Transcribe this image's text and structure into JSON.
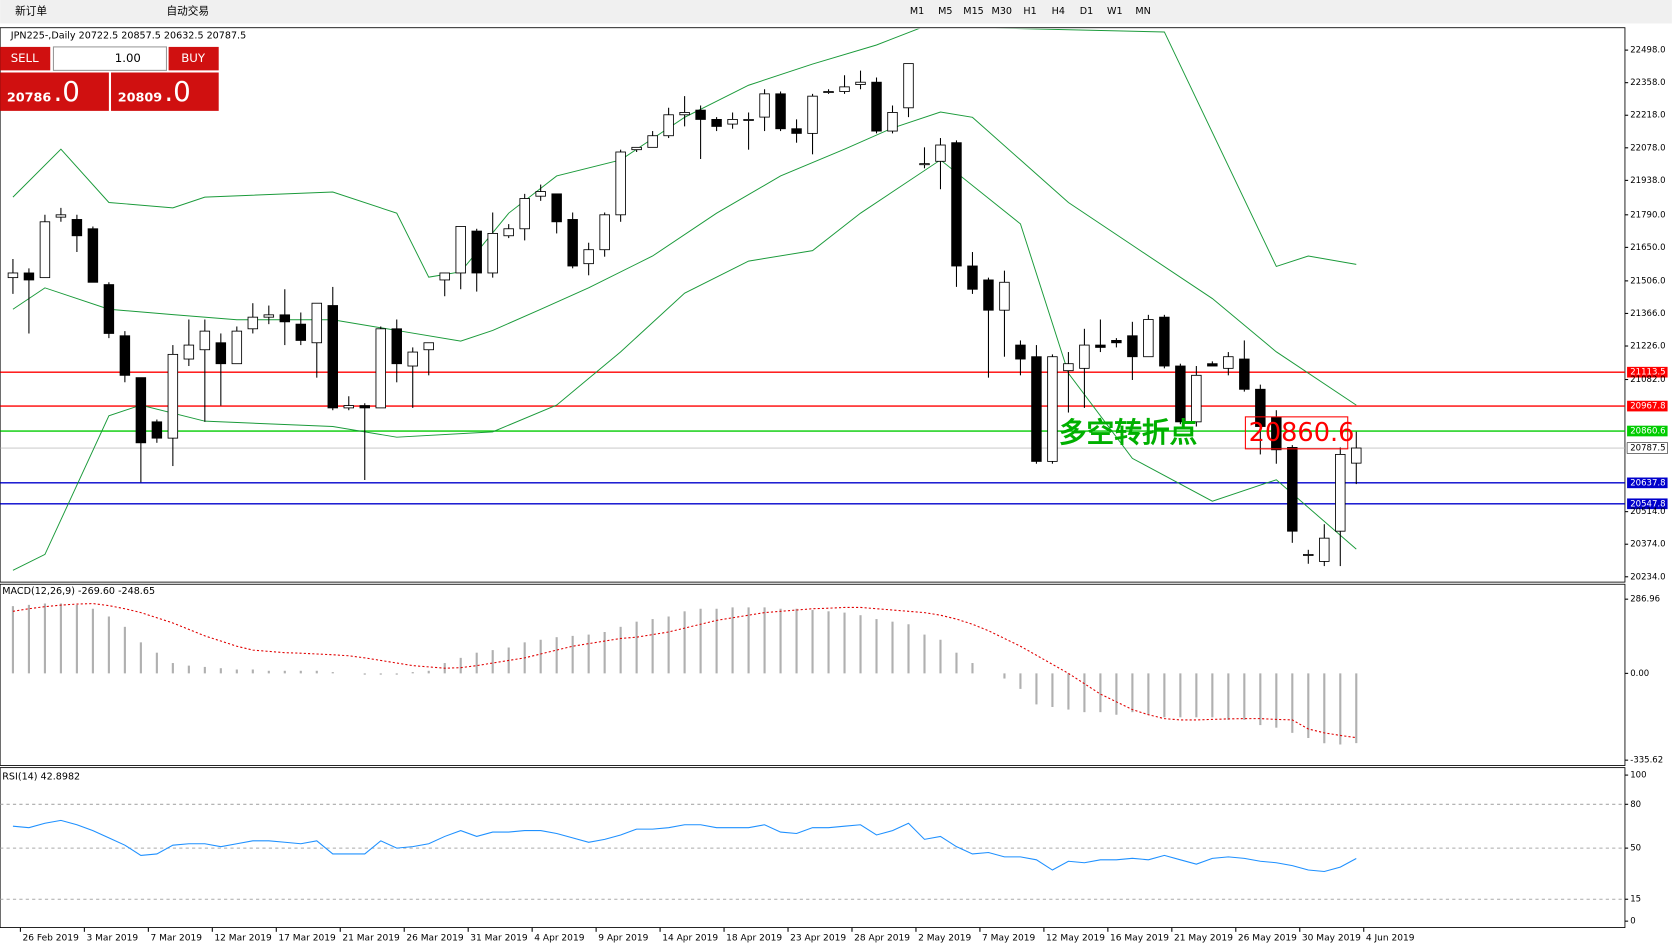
{
  "toolbar": {
    "new_order": "新订单",
    "auto_trading": "自动交易",
    "timeframes": [
      "M1",
      "M5",
      "M15",
      "M30",
      "H1",
      "H4",
      "D1",
      "W1",
      "MN"
    ]
  },
  "trade_panel": {
    "sell": "SELL",
    "lot": "1.00",
    "buy": "BUY",
    "sell_big": "20786",
    "sell_small": ".0",
    "buy_big": "20809",
    "buy_small": ".0"
  },
  "chart_data": {
    "type": "candlestick",
    "title": "JPN225-,Daily  20722.5 20857.5 20632.5 20787.5",
    "x": [
      "26 Feb 2019",
      "3 Mar 2019",
      "7 Mar 2019",
      "12 Mar 2019",
      "17 Mar 2019",
      "21 Mar 2019",
      "26 Mar 2019",
      "31 Mar 2019",
      "4 Apr 2019",
      "9 Apr 2019",
      "14 Apr 2019",
      "18 Apr 2019",
      "23 Apr 2019",
      "28 Apr 2019",
      "2 May 2019",
      "7 May 2019",
      "12 May 2019",
      "16 May 2019",
      "21 May 2019",
      "26 May 2019",
      "30 May 2019",
      "4 Jun 2019"
    ],
    "candles": [
      [
        21520,
        21600,
        21450,
        21540
      ],
      [
        21540,
        21560,
        21280,
        21510
      ],
      [
        21520,
        21790,
        21520,
        21760
      ],
      [
        21780,
        21820,
        21760,
        21790
      ],
      [
        21770,
        21790,
        21630,
        21700
      ],
      [
        21730,
        21740,
        21500,
        21500
      ],
      [
        21490,
        21500,
        21260,
        21280
      ],
      [
        21270,
        21290,
        21070,
        21100
      ],
      [
        21090,
        21090,
        20640,
        20810
      ],
      [
        20900,
        20910,
        20810,
        20830
      ],
      [
        20830,
        21230,
        20710,
        21190
      ],
      [
        21170,
        21340,
        21140,
        21230
      ],
      [
        21210,
        21340,
        20900,
        21290
      ],
      [
        21240,
        21280,
        20970,
        21150
      ],
      [
        21150,
        21310,
        21150,
        21290
      ],
      [
        21300,
        21410,
        21280,
        21350
      ],
      [
        21350,
        21400,
        21320,
        21360
      ],
      [
        21360,
        21470,
        21230,
        21330
      ],
      [
        21320,
        21370,
        21230,
        21250
      ],
      [
        21240,
        21410,
        21090,
        21410
      ],
      [
        21400,
        21480,
        20950,
        20960
      ],
      [
        20960,
        21010,
        20950,
        20970
      ],
      [
        20970,
        20980,
        20650,
        20960
      ],
      [
        20960,
        21310,
        20960,
        21300
      ],
      [
        21300,
        21340,
        21070,
        21150
      ],
      [
        21140,
        21220,
        20960,
        21200
      ],
      [
        21210,
        21240,
        21100,
        21240
      ],
      [
        21510,
        21540,
        21440,
        21540
      ],
      [
        21540,
        21740,
        21470,
        21740
      ],
      [
        21720,
        21730,
        21460,
        21540
      ],
      [
        21540,
        21800,
        21520,
        21710
      ],
      [
        21700,
        21750,
        21690,
        21730
      ],
      [
        21730,
        21880,
        21680,
        21860
      ],
      [
        21870,
        21920,
        21850,
        21890
      ],
      [
        21880,
        21880,
        21710,
        21760
      ],
      [
        21770,
        21800,
        21560,
        21570
      ],
      [
        21580,
        21670,
        21530,
        21640
      ],
      [
        21640,
        21800,
        21610,
        21790
      ],
      [
        21790,
        22070,
        21760,
        22060
      ],
      [
        22070,
        22080,
        22060,
        22080
      ],
      [
        22080,
        22150,
        22080,
        22130
      ],
      [
        22130,
        22250,
        22120,
        22220
      ],
      [
        22220,
        22300,
        22170,
        22230
      ],
      [
        22240,
        22260,
        22030,
        22200
      ],
      [
        22200,
        22210,
        22150,
        22170
      ],
      [
        22180,
        22230,
        22160,
        22200
      ],
      [
        22200,
        22230,
        22070,
        22200
      ],
      [
        22210,
        22330,
        22150,
        22310
      ],
      [
        22310,
        22320,
        22150,
        22160
      ],
      [
        22160,
        22200,
        22100,
        22140
      ],
      [
        22140,
        22310,
        22050,
        22300
      ],
      [
        22320,
        22330,
        22310,
        22320
      ],
      [
        22320,
        22390,
        22310,
        22340
      ],
      [
        22350,
        22410,
        22330,
        22360
      ],
      [
        22360,
        22380,
        22140,
        22150
      ],
      [
        22150,
        22260,
        22140,
        22230
      ],
      [
        22250,
        22440,
        22210,
        22440
      ],
      [
        22010,
        22080,
        21990,
        22010
      ],
      [
        22020,
        22120,
        21900,
        22090
      ],
      [
        22100,
        22110,
        21480,
        21570
      ],
      [
        21570,
        21630,
        21450,
        21470
      ],
      [
        21510,
        21520,
        21090,
        21380
      ],
      [
        21380,
        21550,
        21180,
        21500
      ],
      [
        21230,
        21250,
        21100,
        21170
      ],
      [
        21180,
        21230,
        20720,
        20730
      ],
      [
        20730,
        21190,
        20720,
        21180
      ],
      [
        21120,
        21200,
        20940,
        21150
      ],
      [
        21130,
        21300,
        20960,
        21230
      ],
      [
        21230,
        21340,
        21200,
        21220
      ],
      [
        21250,
        21260,
        21220,
        21240
      ],
      [
        21270,
        21330,
        21080,
        21180
      ],
      [
        21180,
        21360,
        21180,
        21340
      ],
      [
        21350,
        21360,
        21130,
        21140
      ],
      [
        21140,
        21150,
        20890,
        20900
      ],
      [
        20900,
        21140,
        20880,
        21100
      ],
      [
        21150,
        21160,
        21140,
        21140
      ],
      [
        21130,
        21200,
        21100,
        21180
      ],
      [
        21170,
        21250,
        21030,
        21040
      ],
      [
        21040,
        21060,
        20760,
        20880
      ],
      [
        20920,
        20950,
        20720,
        20780
      ],
      [
        20790,
        20800,
        20380,
        20430
      ],
      [
        20330,
        20350,
        20290,
        20330
      ],
      [
        20300,
        20460,
        20280,
        20400
      ],
      [
        20430,
        20790,
        20280,
        20760
      ],
      [
        20722.5,
        20857.5,
        20632.5,
        20787.5
      ]
    ],
    "bands": [
      {
        "color": "#1a9a3a",
        "x": [
          0,
          3,
          6,
          10,
          12,
          20,
          24,
          26,
          28,
          31,
          34,
          38,
          42,
          46,
          50,
          54,
          57,
          72,
          79,
          81,
          84
        ],
        "values": [
          21866,
          22072,
          21843,
          21820,
          21866,
          21888,
          21797,
          21522,
          21545,
          21797,
          21957,
          22026,
          22209,
          22347,
          22438,
          22520,
          22600,
          22576,
          21568,
          21613,
          21577
        ]
      },
      {
        "color": "#1a9a3a",
        "x": [
          0,
          2,
          6,
          10,
          14,
          20,
          24,
          28,
          30,
          33,
          36,
          40,
          44,
          48,
          52,
          55,
          58,
          60,
          63,
          66,
          70,
          75,
          79,
          84
        ],
        "values": [
          21384,
          21476,
          21384,
          21361,
          21339,
          21339,
          21293,
          21247,
          21293,
          21384,
          21476,
          21613,
          21797,
          21957,
          22072,
          22163,
          22232,
          22209,
          22026,
          21843,
          21659,
          21430,
          21201,
          20972
        ]
      },
      {
        "color": "#1a9a3a",
        "x": [
          0,
          2,
          6,
          8,
          12,
          20,
          24,
          30,
          34,
          38,
          42,
          46,
          50,
          53,
          58,
          63,
          66,
          70,
          75,
          79,
          84
        ],
        "values": [
          20262,
          20330,
          20926,
          20972,
          20903,
          20880,
          20834,
          20857,
          20972,
          21201,
          21453,
          21591,
          21636,
          21797,
          22026,
          21751,
          21109,
          20743,
          20559,
          20651,
          20353
        ]
      }
    ],
    "ylim": [
      20234,
      22498
    ],
    "yticks": [
      {
        "value": 22498,
        "label": "22498.0"
      },
      {
        "value": 22358,
        "label": "22358.0"
      },
      {
        "value": 22218,
        "label": "22218.0"
      },
      {
        "value": 22078,
        "label": "22078.0"
      },
      {
        "value": 21938,
        "label": "21938.0"
      },
      {
        "value": 21790,
        "label": "21790.0"
      },
      {
        "value": 21650,
        "label": "21650.0"
      },
      {
        "value": 21506,
        "label": "21506.0"
      },
      {
        "value": 21366,
        "label": "21366.0"
      },
      {
        "value": 21226,
        "label": "21226.0"
      },
      {
        "value": 21082,
        "label": "21082.0"
      },
      {
        "value": 20514,
        "label": "20514.0"
      },
      {
        "value": 20374,
        "label": "20374.0"
      },
      {
        "value": 20234,
        "label": "20234.0"
      }
    ],
    "levels": [
      {
        "value": 21113.5,
        "label": "21113.5",
        "color": "#ff0000"
      },
      {
        "value": 20967.8,
        "label": "20967.8",
        "color": "#ff0000"
      },
      {
        "value": 20860.6,
        "label": "20860.6",
        "color": "#00cc00"
      },
      {
        "value": 20637.8,
        "label": "20637.8",
        "color": "#0000cc"
      },
      {
        "value": 20547.8,
        "label": "20547.8",
        "color": "#0000cc"
      },
      {
        "value": 20787.5,
        "label": "20787.5",
        "color": "#c0c0c0"
      }
    ],
    "annotations": [
      {
        "text": "多空转折点",
        "color": "#00b000"
      },
      {
        "text": "20860.6",
        "color": "#ff0000"
      }
    ],
    "macd": {
      "title": "MACD(12,26,9) -269.60 -248.65",
      "ylim": [
        -335.62,
        286.96
      ],
      "yticks": [
        {
          "value": 286.96,
          "label": "286.96"
        },
        {
          "value": 0,
          "label": "0.00"
        },
        {
          "value": -335.62,
          "label": "-335.62"
        }
      ],
      "histogram": [
        260,
        265,
        270,
        270,
        265,
        250,
        220,
        180,
        120,
        80,
        40,
        30,
        25,
        20,
        15,
        15,
        10,
        10,
        10,
        10,
        5,
        0,
        -5,
        -5,
        -5,
        5,
        10,
        40,
        60,
        80,
        90,
        100,
        120,
        130,
        140,
        145,
        150,
        160,
        180,
        200,
        210,
        220,
        240,
        250,
        250,
        255,
        255,
        255,
        250,
        250,
        245,
        240,
        235,
        225,
        210,
        200,
        190,
        150,
        130,
        80,
        40,
        0,
        -20,
        -60,
        -120,
        -130,
        -140,
        -150,
        -150,
        -160,
        -150,
        -160,
        -170,
        -170,
        -170,
        -170,
        -180,
        -180,
        -200,
        -210,
        -230,
        -250,
        -270,
        -275,
        -269.6
      ],
      "signal": [
        240,
        250,
        258,
        264,
        268,
        270,
        262,
        250,
        235,
        215,
        195,
        170,
        145,
        125,
        105,
        90,
        85,
        80,
        78,
        75,
        72,
        68,
        60,
        50,
        40,
        30,
        25,
        20,
        22,
        30,
        40,
        50,
        60,
        75,
        90,
        105,
        115,
        125,
        135,
        140,
        150,
        160,
        175,
        190,
        205,
        215,
        225,
        235,
        240,
        245,
        250,
        252,
        255,
        255,
        250,
        245,
        240,
        235,
        225,
        210,
        190,
        165,
        135,
        105,
        70,
        35,
        0,
        -40,
        -80,
        -110,
        -140,
        -160,
        -175,
        -180,
        -180,
        -178,
        -176,
        -175,
        -175,
        -178,
        -180,
        -215,
        -230,
        -240,
        -248.65
      ]
    },
    "rsi": {
      "title": "RSI(14) 42.8982",
      "ylim": [
        0,
        100
      ],
      "yticks": [
        100,
        80,
        50,
        15,
        0
      ],
      "levels": [
        80,
        50,
        15
      ],
      "values": [
        65,
        64,
        67,
        69,
        66,
        62,
        57,
        52,
        45,
        46,
        52,
        53,
        53,
        51,
        53,
        55,
        55,
        54,
        53,
        55,
        46,
        46,
        46,
        55,
        50,
        51,
        53,
        58,
        62,
        58,
        61,
        61,
        62,
        62,
        60,
        57,
        54,
        56,
        59,
        63,
        63,
        64,
        66,
        66,
        64,
        64,
        64,
        66,
        61,
        60,
        64,
        64,
        65,
        66,
        59,
        62,
        67,
        56,
        58,
        51,
        46,
        47,
        44,
        44,
        42,
        35,
        41,
        40,
        42,
        42,
        43,
        42,
        45,
        42,
        39,
        43,
        44,
        43,
        41,
        40,
        38,
        35,
        34,
        37,
        42.8982
      ]
    }
  }
}
